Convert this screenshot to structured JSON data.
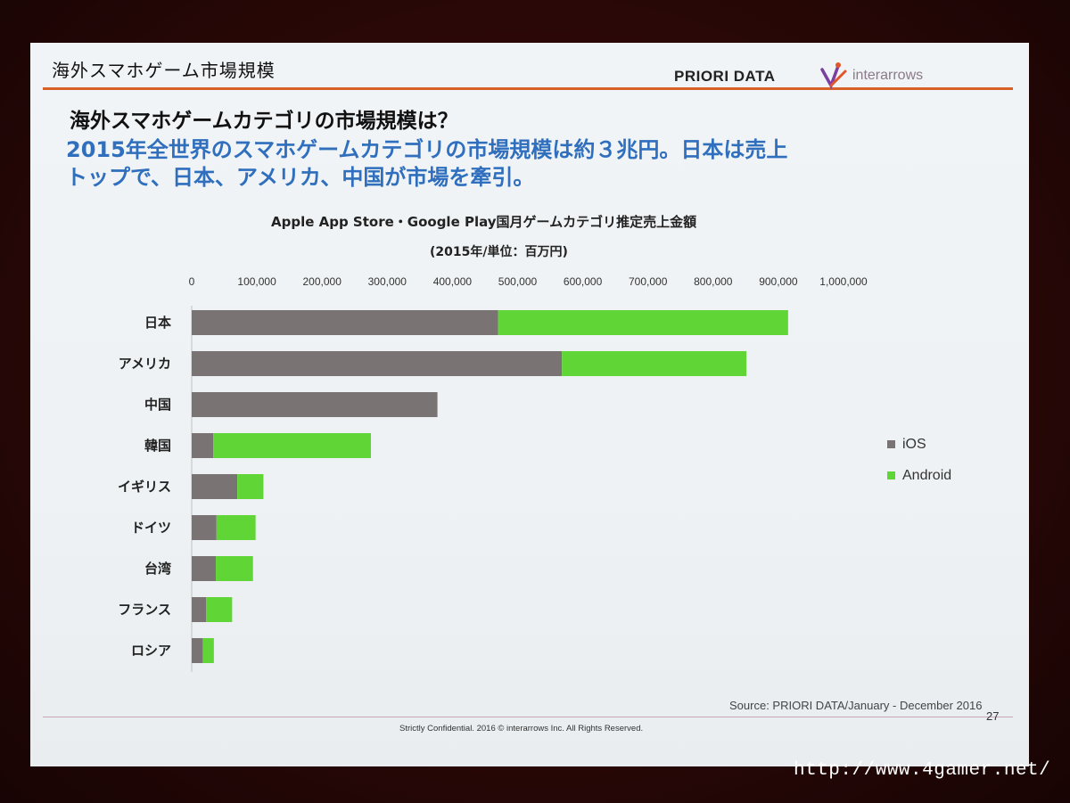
{
  "slide": {
    "header_title": "海外スマホゲーム市場規模",
    "brand_priori": "PRIORI DATA",
    "brand_inter": "interarrows",
    "heading_question": "海外スマホゲームカテゴリの市場規模は？",
    "heading_line1": "2015年全世界のスマホゲームカテゴリの市場規模は約３兆円。日本は売上",
    "heading_line2": "トップで、日本、アメリカ、中国が市場を牽引。",
    "source": "Source: PRIORI DATA/January - December 2016",
    "page_number": "27",
    "confidential": "Strictly Confidential. 2016 © interarrows Inc. All Rights Reserved."
  },
  "watermark": "http://www.4gamer.net/",
  "colors": {
    "ios": "#7a7374",
    "android": "#5fd635",
    "accent_line": "#d8612a",
    "heading_blue": "#2f6fbe"
  },
  "chart_data": {
    "type": "bar",
    "orientation": "horizontal",
    "stacked": true,
    "title": "Apple App Store・Google Play国月ゲームカテゴリ推定売上金額",
    "subtitle": "(2015年/単位：百万円)",
    "categories": [
      "日本",
      "アメリカ",
      "中国",
      "韓国",
      "イギリス",
      "ドイツ",
      "台湾",
      "フランス",
      "ロシア"
    ],
    "series": [
      {
        "name": "iOS",
        "values": [
          470000,
          568000,
          377000,
          33000,
          70000,
          38000,
          37000,
          22000,
          17000
        ]
      },
      {
        "name": "Android",
        "values": [
          445000,
          283000,
          0,
          242000,
          40000,
          60000,
          57000,
          40000,
          17000
        ]
      }
    ],
    "xlim": [
      0,
      1000000
    ],
    "ticks": [
      "0",
      "100,000",
      "200,000",
      "300,000",
      "400,000",
      "500,000",
      "600,000",
      "700,000",
      "800,000",
      "900,000",
      "1,000,000"
    ],
    "tick_values": [
      0,
      100000,
      200000,
      300000,
      400000,
      500000,
      600000,
      700000,
      800000,
      900000,
      1000000
    ],
    "legend_position": "right",
    "grid": false
  }
}
